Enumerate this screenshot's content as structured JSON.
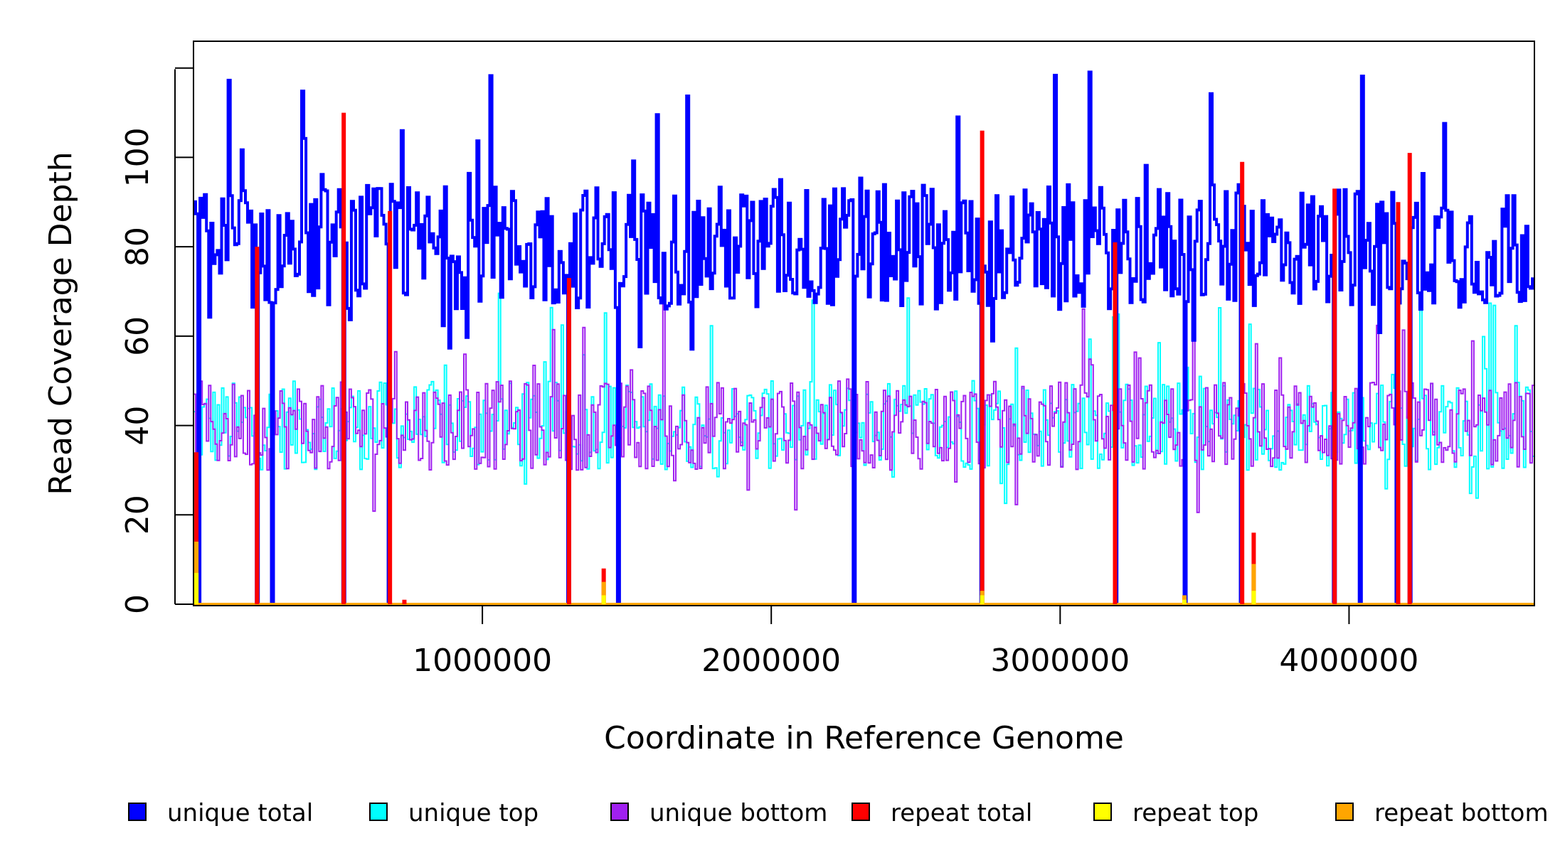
{
  "chart_data": {
    "type": "line",
    "title": "",
    "xlabel": "Coordinate in Reference Genome",
    "ylabel": "Read Coverage Depth",
    "xlim": [
      1,
      4641652
    ],
    "ylim": [
      0,
      120
    ],
    "x_ticks": [
      1000000,
      2000000,
      3000000,
      4000000
    ],
    "x_tick_labels": [
      "1000000",
      "2000000",
      "3000000",
      "4000000"
    ],
    "y_ticks": [
      0,
      20,
      40,
      60,
      80,
      100
    ],
    "y_tick_labels": [
      "0",
      "20",
      "40",
      "60",
      "80",
      "100"
    ],
    "grid": false,
    "legend_position": "bottom",
    "series": [
      {
        "name": "unique total",
        "color": "#0000ff",
        "description": "Stepped coverage trace fluctuating between about 55 and 120 (typically 65-95), with sharp drops to 0 at repeat regions.",
        "approx_min": 0,
        "approx_max": 122,
        "typical_range": [
          65,
          95
        ],
        "drop_to_zero_x": [
          20000,
          220000,
          270000,
          520000,
          680000,
          1300000,
          1470000,
          2290000,
          2730000,
          3190000,
          3430000,
          3630000,
          3950000,
          4040000,
          4170000,
          4210000
        ]
      },
      {
        "name": "unique top",
        "color": "#00ffff",
        "description": "Top-strand unique coverage fluctuating roughly between 20 and 70 (typically 30-50).",
        "approx_min": 17,
        "approx_max": 71,
        "typical_range": [
          30,
          50
        ]
      },
      {
        "name": "unique bottom",
        "color": "#a020f0",
        "description": "Bottom-strand unique coverage fluctuating roughly between 20 and 70 (typically 30-50).",
        "approx_min": 20,
        "approx_max": 69,
        "typical_range": [
          30,
          50
        ]
      },
      {
        "name": "repeat total",
        "color": "#ff0000",
        "description": "Zero almost everywhere; spikes at repeat regions.",
        "spikes": [
          {
            "x": 10000,
            "y": 34
          },
          {
            "x": 220000,
            "y": 80
          },
          {
            "x": 520000,
            "y": 110
          },
          {
            "x": 680000,
            "y": 88
          },
          {
            "x": 730000,
            "y": 1
          },
          {
            "x": 1300000,
            "y": 73
          },
          {
            "x": 1420000,
            "y": 8
          },
          {
            "x": 2730000,
            "y": 106
          },
          {
            "x": 3190000,
            "y": 81
          },
          {
            "x": 3630000,
            "y": 99
          },
          {
            "x": 3670000,
            "y": 16
          },
          {
            "x": 3950000,
            "y": 93
          },
          {
            "x": 4170000,
            "y": 90
          },
          {
            "x": 4210000,
            "y": 101
          }
        ]
      },
      {
        "name": "repeat top",
        "color": "#ffff00",
        "description": "Near zero almost everywhere with small spikes at repeat regions.",
        "spikes": [
          {
            "x": 10000,
            "y": 7
          },
          {
            "x": 1420000,
            "y": 2
          },
          {
            "x": 2730000,
            "y": 2
          },
          {
            "x": 3430000,
            "y": 1
          },
          {
            "x": 3670000,
            "y": 3
          }
        ]
      },
      {
        "name": "repeat bottom",
        "color": "#ffa500",
        "description": "Near zero almost everywhere with small spikes at repeat regions.",
        "spikes": [
          {
            "x": 10000,
            "y": 14
          },
          {
            "x": 1420000,
            "y": 5
          },
          {
            "x": 2730000,
            "y": 3
          },
          {
            "x": 3430000,
            "y": 2
          },
          {
            "x": 3670000,
            "y": 9
          }
        ]
      }
    ]
  }
}
